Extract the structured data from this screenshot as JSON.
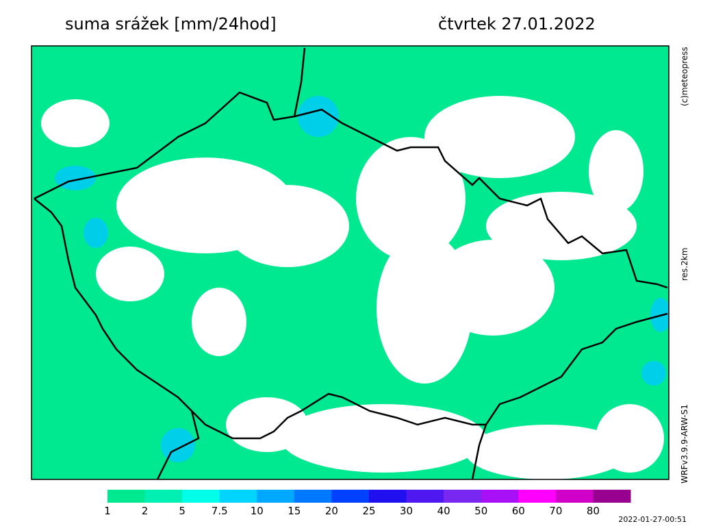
{
  "header": {
    "title": "suma srážek [mm/24hod]",
    "date": "čtvrtek 27.01.2022"
  },
  "side_labels": {
    "copyright": "(c)meteopress",
    "resolution": "res.2km",
    "model": "WRFv3.9.9-ARW-S1"
  },
  "colorbar": {
    "levels": [
      1,
      2,
      5,
      7.5,
      10,
      15,
      20,
      25,
      30,
      40,
      50,
      60,
      70,
      80
    ],
    "colors": [
      "#00e890",
      "#00f0b4",
      "#00ffe8",
      "#00d4ff",
      "#00a8ff",
      "#0078ff",
      "#0040ff",
      "#2010f0",
      "#5018f0",
      "#7828f0",
      "#a810f8",
      "#ff00ff",
      "#d000c8",
      "#980090"
    ]
  },
  "timestamp": "2022-01-27-00:51"
}
